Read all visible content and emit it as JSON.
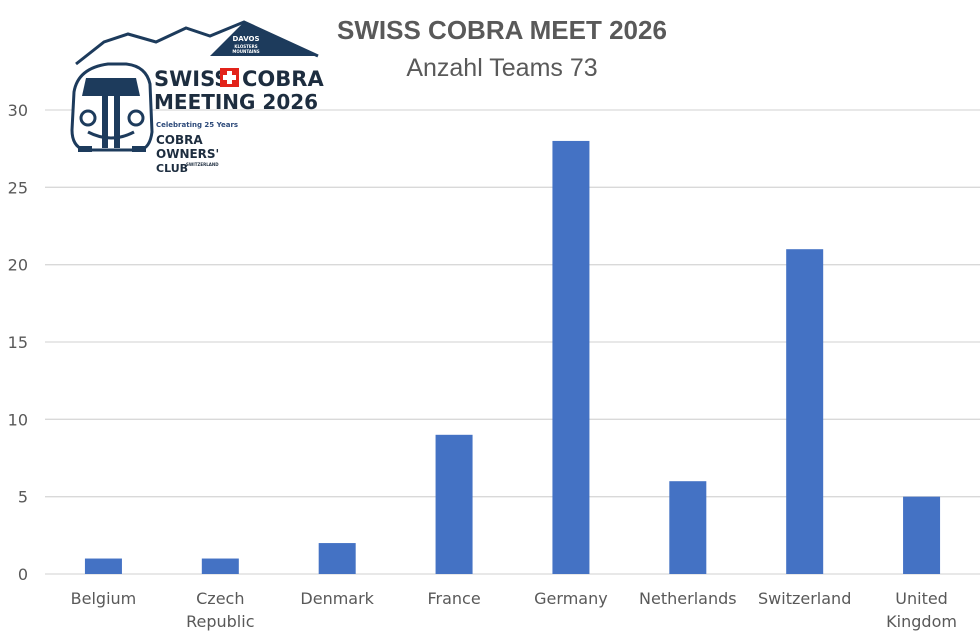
{
  "chart_data": {
    "type": "bar",
    "title": "SWISS COBRA MEET 2026",
    "subtitle": "Anzahl Teams 73",
    "categories": [
      [
        "Belgium"
      ],
      [
        "Czech",
        "Republic"
      ],
      [
        "Denmark"
      ],
      [
        "France"
      ],
      [
        "Germany"
      ],
      [
        "Netherlands"
      ],
      [
        "Switzerland"
      ],
      [
        "United",
        "Kingdom"
      ]
    ],
    "values": [
      1,
      1,
      2,
      9,
      28,
      6,
      21,
      5
    ],
    "ylim": [
      0,
      30
    ],
    "yticks": [
      0,
      5,
      10,
      15,
      20,
      25,
      30
    ],
    "grid": true,
    "bar_color": "#4472c4",
    "grid_color": "#d9d9d9"
  },
  "logo": {
    "line1_left": "SWISS",
    "line1_right": "COBRA",
    "line2": "MEETING 2026",
    "tagline": "Celebrating 25 Years",
    "club_line1": "COBRA",
    "club_line2": "OWNERS'",
    "club_line3": "CLUB",
    "club_country": "SWITZERLAND",
    "badge_line1": "DAVOS",
    "badge_line2": "KLOSTERS",
    "badge_line3": "MOUNTAINS",
    "navy": "#1d3b5c",
    "swiss_red": "#e2231a"
  }
}
